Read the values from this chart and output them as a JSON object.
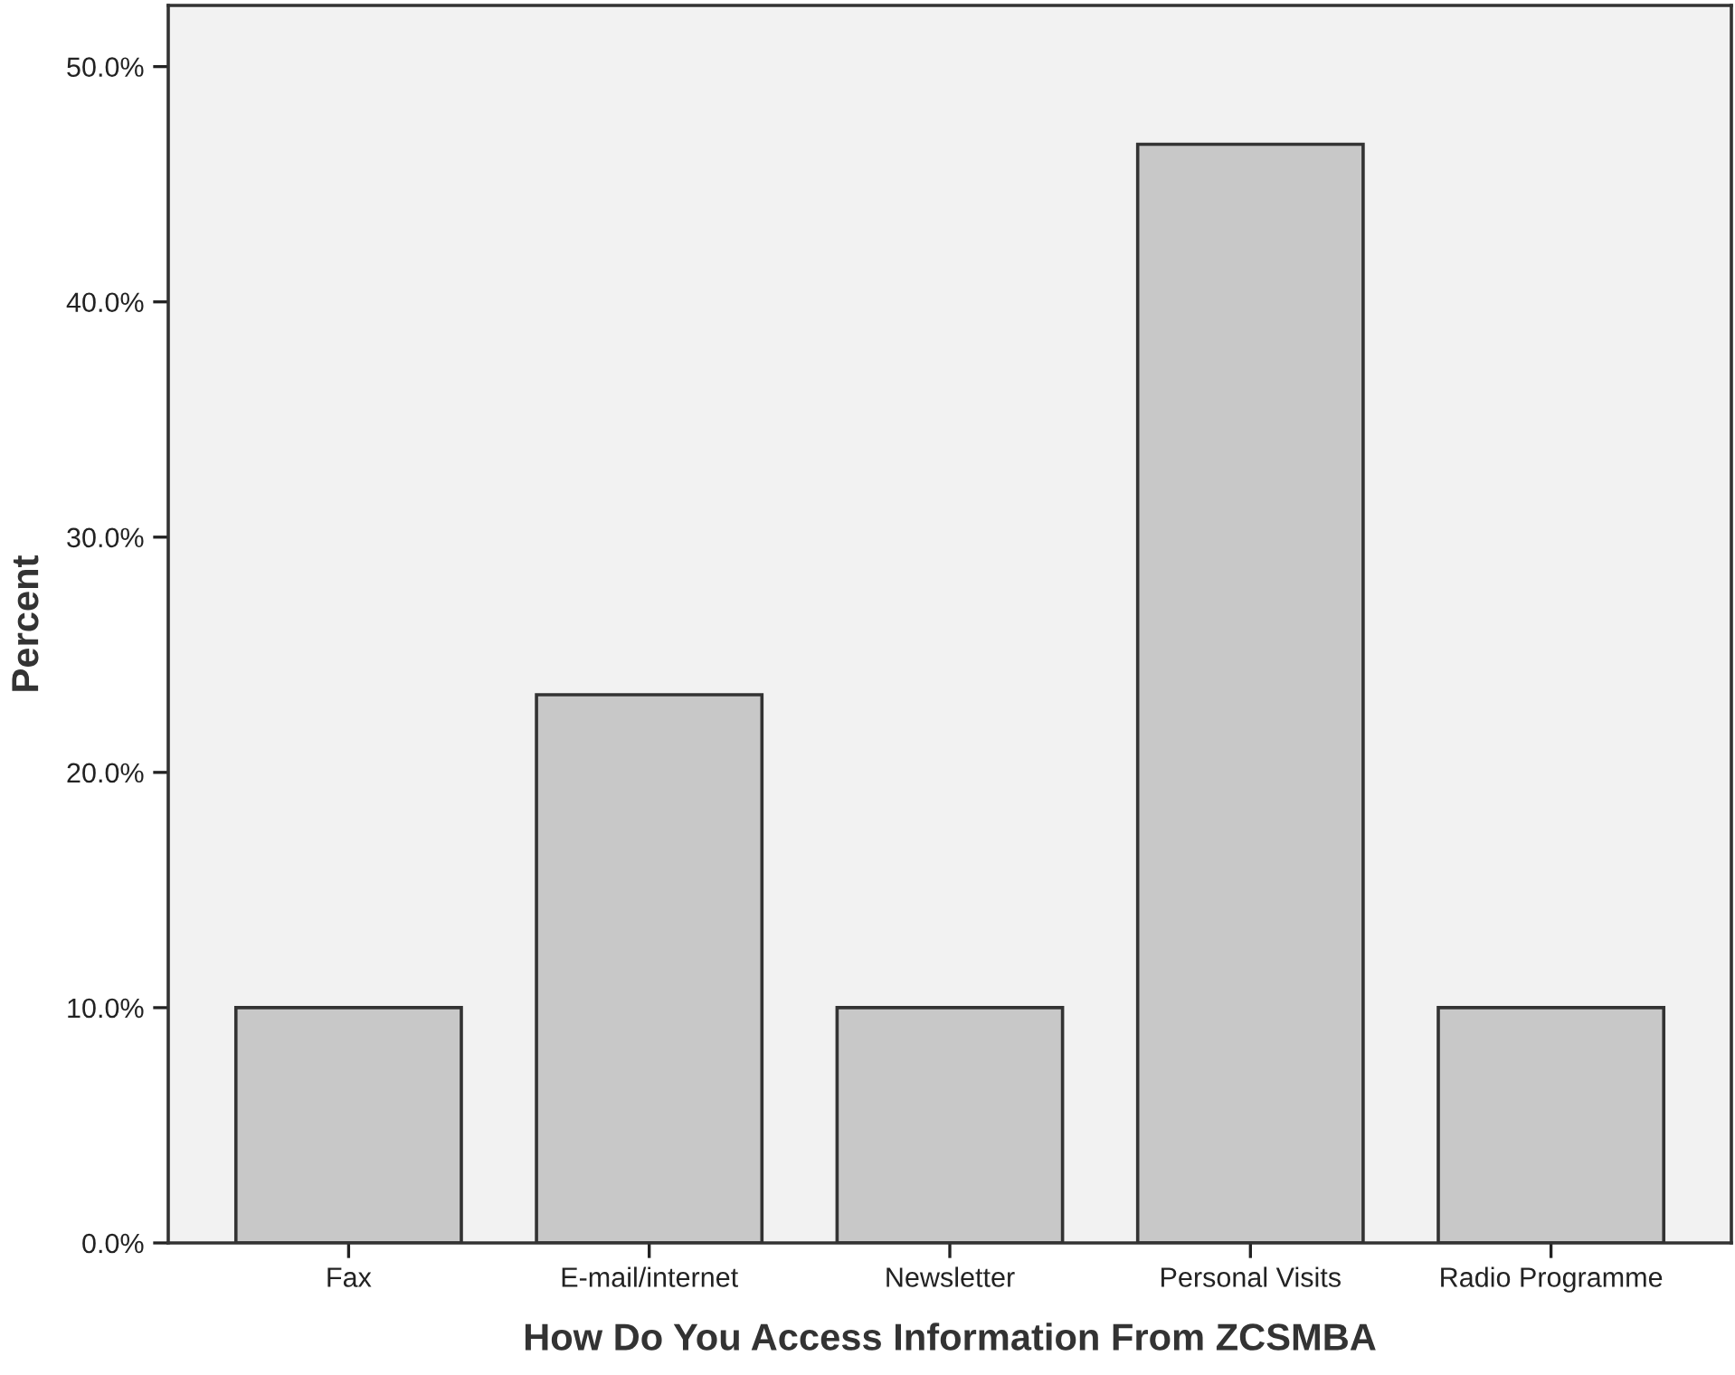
{
  "chart_data": {
    "type": "bar",
    "xlabel": "How Do You Access Information From ZCSMBA",
    "ylabel": "Percent",
    "categories": [
      "Fax",
      "E-mail/internet",
      "Newsletter",
      "Personal Visits",
      "Radio Programme"
    ],
    "values": [
      10.0,
      23.3,
      10.0,
      46.7,
      10.0
    ],
    "color": "#c8c8c8",
    "ylim": [
      0,
      52.6
    ],
    "yticks": [
      {
        "value": 0,
        "label": "0.0%"
      },
      {
        "value": 10,
        "label": "10.0%"
      },
      {
        "value": 20,
        "label": "20.0%"
      },
      {
        "value": 30,
        "label": "30.0%"
      },
      {
        "value": 40,
        "label": "40.0%"
      },
      {
        "value": 50,
        "label": "50.0%"
      }
    ],
    "grid": false
  }
}
